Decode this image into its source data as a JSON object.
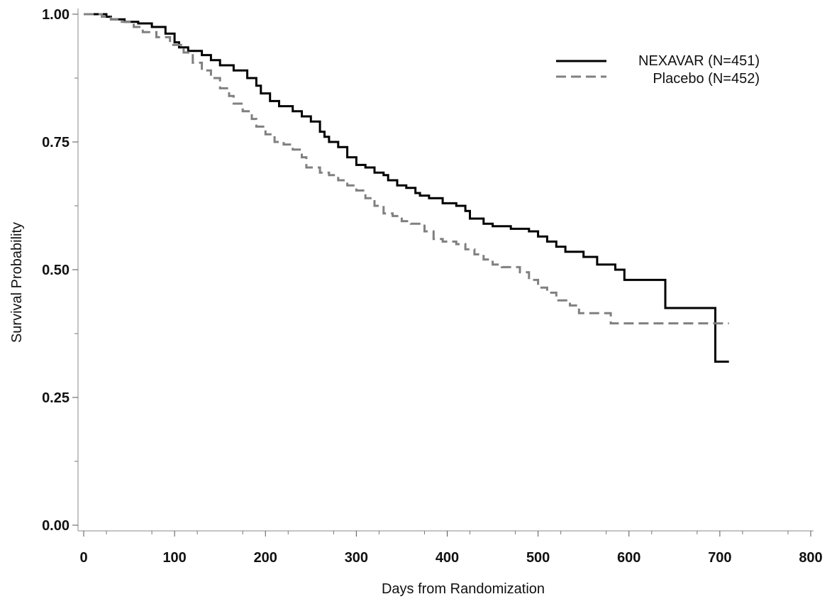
{
  "chart_data": {
    "type": "line",
    "title": "",
    "xlabel": "Days from Randomization",
    "ylabel": "Survival Probability",
    "xlim": [
      0,
      800
    ],
    "ylim": [
      0,
      1
    ],
    "x_ticks": [
      "0",
      "100",
      "200",
      "300",
      "400",
      "500",
      "600",
      "700",
      "800"
    ],
    "y_ticks": [
      "0.00",
      "0.25",
      "0.50",
      "0.75",
      "1.00"
    ],
    "grid": false,
    "legend_position": "top-right",
    "series": [
      {
        "name": "NEXAVAR (N=451)",
        "color": "#000000",
        "line_style": "solid",
        "step": true,
        "points": [
          [
            0,
            1.0
          ],
          [
            25,
            0.995
          ],
          [
            30,
            0.99
          ],
          [
            45,
            0.985
          ],
          [
            60,
            0.982
          ],
          [
            75,
            0.975
          ],
          [
            90,
            0.962
          ],
          [
            100,
            0.945
          ],
          [
            105,
            0.935
          ],
          [
            115,
            0.928
          ],
          [
            130,
            0.92
          ],
          [
            140,
            0.91
          ],
          [
            150,
            0.9
          ],
          [
            165,
            0.89
          ],
          [
            180,
            0.875
          ],
          [
            190,
            0.86
          ],
          [
            195,
            0.845
          ],
          [
            205,
            0.83
          ],
          [
            215,
            0.82
          ],
          [
            230,
            0.81
          ],
          [
            240,
            0.8
          ],
          [
            250,
            0.79
          ],
          [
            260,
            0.77
          ],
          [
            265,
            0.76
          ],
          [
            270,
            0.75
          ],
          [
            280,
            0.74
          ],
          [
            290,
            0.72
          ],
          [
            300,
            0.705
          ],
          [
            310,
            0.7
          ],
          [
            320,
            0.69
          ],
          [
            330,
            0.685
          ],
          [
            335,
            0.675
          ],
          [
            345,
            0.665
          ],
          [
            355,
            0.66
          ],
          [
            365,
            0.65
          ],
          [
            370,
            0.645
          ],
          [
            380,
            0.64
          ],
          [
            395,
            0.63
          ],
          [
            410,
            0.625
          ],
          [
            420,
            0.615
          ],
          [
            425,
            0.6
          ],
          [
            440,
            0.59
          ],
          [
            450,
            0.585
          ],
          [
            470,
            0.58
          ],
          [
            490,
            0.575
          ],
          [
            500,
            0.565
          ],
          [
            510,
            0.555
          ],
          [
            520,
            0.545
          ],
          [
            530,
            0.535
          ],
          [
            550,
            0.525
          ],
          [
            565,
            0.51
          ],
          [
            585,
            0.5
          ],
          [
            595,
            0.48
          ],
          [
            640,
            0.425
          ],
          [
            695,
            0.32
          ],
          [
            710,
            0.32
          ]
        ]
      },
      {
        "name": "Placebo (N=452)",
        "color": "#808080",
        "line_style": "dashed",
        "step": true,
        "points": [
          [
            0,
            1.0
          ],
          [
            20,
            0.995
          ],
          [
            30,
            0.99
          ],
          [
            40,
            0.985
          ],
          [
            55,
            0.975
          ],
          [
            65,
            0.965
          ],
          [
            80,
            0.955
          ],
          [
            95,
            0.94
          ],
          [
            110,
            0.925
          ],
          [
            120,
            0.905
          ],
          [
            130,
            0.89
          ],
          [
            140,
            0.875
          ],
          [
            150,
            0.855
          ],
          [
            160,
            0.84
          ],
          [
            165,
            0.825
          ],
          [
            175,
            0.81
          ],
          [
            185,
            0.795
          ],
          [
            190,
            0.78
          ],
          [
            200,
            0.765
          ],
          [
            210,
            0.75
          ],
          [
            220,
            0.745
          ],
          [
            230,
            0.735
          ],
          [
            240,
            0.72
          ],
          [
            245,
            0.7
          ],
          [
            260,
            0.69
          ],
          [
            270,
            0.685
          ],
          [
            280,
            0.675
          ],
          [
            290,
            0.665
          ],
          [
            300,
            0.655
          ],
          [
            310,
            0.64
          ],
          [
            320,
            0.625
          ],
          [
            330,
            0.61
          ],
          [
            340,
            0.605
          ],
          [
            350,
            0.595
          ],
          [
            360,
            0.59
          ],
          [
            375,
            0.575
          ],
          [
            385,
            0.56
          ],
          [
            395,
            0.555
          ],
          [
            410,
            0.55
          ],
          [
            420,
            0.54
          ],
          [
            430,
            0.53
          ],
          [
            440,
            0.52
          ],
          [
            450,
            0.51
          ],
          [
            460,
            0.505
          ],
          [
            480,
            0.495
          ],
          [
            490,
            0.48
          ],
          [
            500,
            0.465
          ],
          [
            510,
            0.455
          ],
          [
            520,
            0.44
          ],
          [
            535,
            0.43
          ],
          [
            545,
            0.415
          ],
          [
            580,
            0.395
          ],
          [
            710,
            0.395
          ]
        ]
      }
    ]
  }
}
